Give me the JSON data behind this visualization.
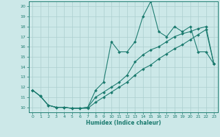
{
  "title": "",
  "xlabel": "Humidex (Indice chaleur)",
  "xlim": [
    -0.5,
    23.5
  ],
  "ylim": [
    9.5,
    20.5
  ],
  "xticks": [
    0,
    1,
    2,
    3,
    4,
    5,
    6,
    7,
    8,
    9,
    10,
    11,
    12,
    13,
    14,
    15,
    16,
    17,
    18,
    19,
    20,
    21,
    22,
    23
  ],
  "yticks": [
    10,
    11,
    12,
    13,
    14,
    15,
    16,
    17,
    18,
    19,
    20
  ],
  "bg_color": "#cce8e8",
  "line_color": "#1a7a6e",
  "grid_color": "#aacece",
  "line1_x": [
    0,
    1,
    2,
    3,
    4,
    5,
    6,
    7,
    8,
    9,
    10,
    11,
    12,
    13,
    14,
    15,
    16,
    17,
    18,
    19,
    20,
    21,
    22,
    23
  ],
  "line1_y": [
    11.7,
    11.1,
    10.2,
    10.0,
    10.0,
    9.9,
    9.9,
    10.0,
    11.7,
    12.5,
    16.5,
    15.5,
    15.5,
    16.5,
    19.0,
    20.5,
    17.5,
    17.0,
    18.0,
    17.5,
    18.0,
    15.5,
    15.5,
    14.3
  ],
  "line2_x": [
    0,
    1,
    2,
    3,
    4,
    5,
    6,
    7,
    8,
    9,
    10,
    11,
    12,
    13,
    14,
    15,
    16,
    17,
    18,
    19,
    20,
    21,
    22,
    23
  ],
  "line2_y": [
    11.7,
    11.1,
    10.2,
    10.0,
    10.0,
    9.9,
    9.9,
    10.0,
    11.0,
    11.5,
    12.0,
    12.5,
    13.2,
    14.5,
    15.2,
    15.7,
    16.0,
    16.5,
    17.0,
    17.3,
    17.5,
    17.8,
    18.0,
    14.3
  ],
  "line3_x": [
    0,
    1,
    2,
    3,
    4,
    5,
    6,
    7,
    8,
    9,
    10,
    11,
    12,
    13,
    14,
    15,
    16,
    17,
    18,
    19,
    20,
    21,
    22,
    23
  ],
  "line3_y": [
    11.7,
    11.1,
    10.2,
    10.0,
    10.0,
    9.9,
    9.9,
    9.9,
    10.5,
    11.0,
    11.5,
    12.0,
    12.5,
    13.2,
    13.8,
    14.2,
    14.8,
    15.3,
    15.8,
    16.2,
    16.7,
    17.2,
    17.7,
    14.3
  ]
}
